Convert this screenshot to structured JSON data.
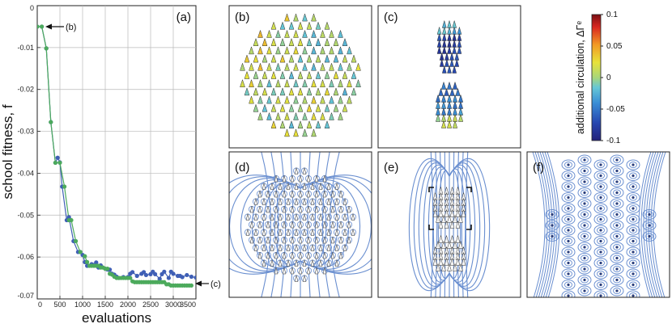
{
  "figure": {
    "panel_labels": {
      "a": "(a)",
      "b": "(b)",
      "c": "(c)",
      "d": "(d)",
      "e": "(e)",
      "f": "(f)"
    },
    "annotations": {
      "b": "(b)",
      "c": "(c)"
    },
    "colorbar": {
      "label": "additional circulation, ΔΓᵉ",
      "ticks": [
        "0.1",
        "0.05",
        "0",
        "-0.05",
        "-0.1"
      ],
      "min": -0.1,
      "max": 0.1
    }
  },
  "chart_data": {
    "type": "line",
    "xlabel": "evaluations",
    "ylabel": "school fitness, f",
    "xlim": [
      0,
      3500
    ],
    "ylim": [
      -0.07,
      0
    ],
    "grid": true,
    "xticks": [
      "0",
      "500",
      "1000",
      "1500",
      "2000",
      "2500",
      "3000",
      "3500"
    ],
    "yticks": [
      "0",
      "-0.01",
      "-0.02",
      "-0.03",
      "-0.04",
      "-0.05",
      "-0.06",
      "-0.07"
    ],
    "colors": {
      "blue": "#3f5fb5",
      "green": "#4caa5c"
    },
    "series": [
      {
        "marker_color": "#3f5fb5",
        "x": [
          0,
          100,
          200,
          300,
          400,
          450,
          500,
          550,
          650,
          700,
          800,
          900,
          950,
          1000,
          1050,
          1100,
          1200,
          1300,
          1350,
          1400,
          1500,
          1550,
          1600,
          1650,
          1700,
          1750,
          1800,
          1900,
          2000,
          2050,
          2100,
          2200,
          2300,
          2350,
          2400,
          2500,
          2550,
          2600,
          2700,
          2750,
          2800,
          2900,
          2950,
          3000,
          3100,
          3150,
          3200,
          3300,
          3400,
          3500
        ],
        "y": [
          -0.005,
          -0.005,
          -0.0102,
          -0.0278,
          -0.0375,
          -0.0363,
          -0.0374,
          -0.0432,
          -0.0512,
          -0.0505,
          -0.0562,
          -0.0588,
          -0.0588,
          -0.0595,
          -0.0612,
          -0.0621,
          -0.0617,
          -0.0613,
          -0.0625,
          -0.062,
          -0.0628,
          -0.063,
          -0.063,
          -0.064,
          -0.0642,
          -0.0647,
          -0.065,
          -0.0648,
          -0.0648,
          -0.064,
          -0.0636,
          -0.0645,
          -0.064,
          -0.0636,
          -0.0643,
          -0.0641,
          -0.0635,
          -0.0641,
          -0.0652,
          -0.0641,
          -0.0635,
          -0.065,
          -0.0635,
          -0.064,
          -0.0645,
          -0.0645,
          -0.0648,
          -0.0643,
          -0.0647,
          -0.0649
        ]
      },
      {
        "marker_color": "#4caa5c",
        "x": [
          0,
          100,
          200,
          300,
          400,
          500,
          600,
          700,
          750,
          850,
          950,
          1050,
          1100,
          1150,
          1200,
          1250,
          1300,
          1350,
          1400,
          1450,
          1500,
          1550,
          1600,
          1650,
          1700,
          1750,
          1800,
          1850,
          1900,
          1950,
          2000,
          2050,
          2100,
          2150,
          2200,
          2250,
          2300,
          2350,
          2400,
          2450,
          2500,
          2550,
          2600,
          2650,
          2700,
          2750,
          2800,
          2850,
          2900,
          2950,
          3000,
          3050,
          3100,
          3150,
          3200,
          3250,
          3300,
          3350,
          3400
        ],
        "y": [
          -0.005,
          -0.005,
          -0.0102,
          -0.0278,
          -0.0375,
          -0.0375,
          -0.0432,
          -0.0512,
          -0.0512,
          -0.0562,
          -0.0588,
          -0.0598,
          -0.0612,
          -0.0621,
          -0.0621,
          -0.0621,
          -0.0621,
          -0.0621,
          -0.0625,
          -0.0625,
          -0.0628,
          -0.0628,
          -0.064,
          -0.0642,
          -0.0647,
          -0.065,
          -0.065,
          -0.065,
          -0.065,
          -0.065,
          -0.065,
          -0.065,
          -0.0658,
          -0.066,
          -0.066,
          -0.066,
          -0.066,
          -0.066,
          -0.066,
          -0.066,
          -0.066,
          -0.066,
          -0.066,
          -0.066,
          -0.066,
          -0.066,
          -0.066,
          -0.0665,
          -0.0665,
          -0.0668,
          -0.0668,
          -0.0668,
          -0.0668,
          -0.0668,
          -0.0668,
          -0.0668,
          -0.0668,
          -0.0668,
          -0.0668
        ]
      }
    ]
  }
}
